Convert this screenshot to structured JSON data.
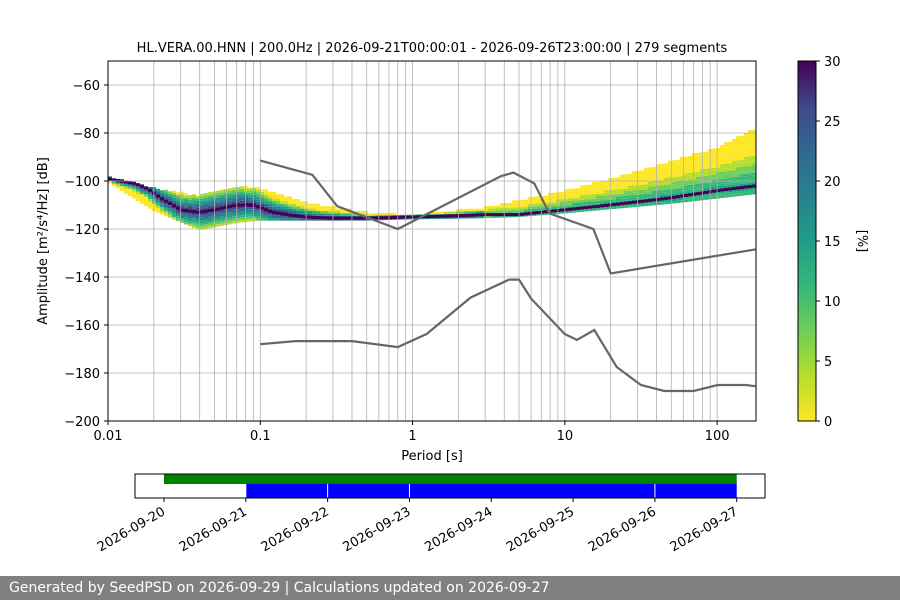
{
  "chart_data": [
    {
      "type": "heatmap",
      "title": "HL.VERA.00.HNN | 200.0Hz | 2026-09-21T00:00:01 - 2026-09-26T23:00:00 | 279 segments",
      "xlabel": "Period [s]",
      "ylabel": "Amplitude [m²/s⁴/Hz] [dB]",
      "xscale": "log",
      "xlim": [
        0.01,
        180
      ],
      "ylim": [
        -200,
        -50
      ],
      "x_tick_labels": [
        "0.01",
        "0.1",
        "1",
        "10",
        "100"
      ],
      "y_tick_labels": [
        "−60",
        "−80",
        "−100",
        "−120",
        "−140",
        "−160",
        "−180",
        "−200"
      ],
      "grid": "vertical lines at every log decade subdivision; horizontal lines at every 20 dB",
      "colorbar": {
        "label": "[%]",
        "range": [
          0,
          30
        ],
        "tick_labels": [
          "0",
          "5",
          "10",
          "15",
          "20",
          "25",
          "30"
        ],
        "colormap": "viridis_r"
      },
      "density_series": [
        {
          "name": "mode",
          "x": [
            0.01,
            0.012,
            0.015,
            0.018,
            0.02,
            0.022,
            0.025,
            0.03,
            0.04,
            0.05,
            0.07,
            0.09,
            0.1,
            0.12,
            0.15,
            0.2,
            0.3,
            0.5,
            1,
            2,
            3,
            5,
            7,
            10,
            20,
            50,
            100,
            180
          ],
          "y": [
            -99,
            -100,
            -101,
            -103,
            -105,
            -107,
            -109,
            -112,
            -113,
            -112,
            -110,
            -110,
            -111,
            -113,
            -114,
            -115,
            -115.5,
            -115.5,
            -115,
            -114.5,
            -114,
            -114,
            -113,
            -112,
            -110,
            -107,
            -104,
            -102
          ]
        },
        {
          "name": "high",
          "x": [
            0.01,
            0.02,
            0.04,
            0.07,
            0.1,
            0.2,
            0.5,
            1,
            3,
            5,
            10,
            30,
            100,
            180
          ],
          "y": [
            -98,
            -103,
            -106,
            -102,
            -103,
            -109,
            -113,
            -114,
            -111,
            -108,
            -104,
            -96,
            -86,
            -78
          ]
        },
        {
          "name": "low",
          "x": [
            0.01,
            0.02,
            0.04,
            0.07,
            0.1,
            0.2,
            0.5,
            1,
            3,
            5,
            10,
            50,
            180
          ],
          "y": [
            -100,
            -112,
            -120,
            -117,
            -116,
            -116,
            -116,
            -115.5,
            -115,
            -114.5,
            -113,
            -109,
            -105
          ]
        }
      ],
      "nhnm": {
        "name": "NHNM",
        "x": [
          0.1,
          0.22,
          0.32,
          0.8,
          3.8,
          4.6,
          6.3,
          7.9,
          15.4,
          20,
          178
        ],
        "y": [
          -91.5,
          -97.4,
          -110.5,
          -120,
          -98,
          -96.5,
          -101,
          -113.5,
          -120,
          -138.5,
          -128.5
        ]
      },
      "nlnm": {
        "name": "NLNM",
        "x": [
          0.1,
          0.17,
          0.4,
          0.8,
          1.24,
          2.4,
          4.3,
          5,
          6,
          10,
          12,
          15.6,
          21.9,
          31.6,
          45,
          70,
          101,
          154,
          178
        ],
        "y": [
          -168,
          -166.7,
          -166.7,
          -169.2,
          -163.7,
          -148.6,
          -141.1,
          -141.1,
          -149,
          -163.8,
          -166.2,
          -162.1,
          -177.5,
          -185,
          -187.5,
          -187.5,
          -185,
          -185,
          -185.5
        ]
      }
    },
    {
      "type": "timeline",
      "x_tick_labels": [
        "2026-09-20",
        "2026-09-21",
        "2026-09-22",
        "2026-09-23",
        "2026-09-24",
        "2026-09-25",
        "2026-09-26",
        "2026-09-27"
      ],
      "available": {
        "color": "#008000",
        "from": "2026-09-20",
        "to": "2026-09-27"
      },
      "processed_segments": {
        "color": "#0000ff",
        "spans": [
          [
            "2026-09-21",
            "2026-09-22"
          ],
          [
            "2026-09-22",
            "2026-09-23"
          ],
          [
            "2026-09-23",
            "2026-09-26"
          ],
          [
            "2026-09-26",
            "2026-09-27"
          ]
        ]
      }
    }
  ],
  "footer": {
    "text": "Generated by SeedPSD on 2026-09-29 | Calculations updated on 2026-09-27"
  }
}
